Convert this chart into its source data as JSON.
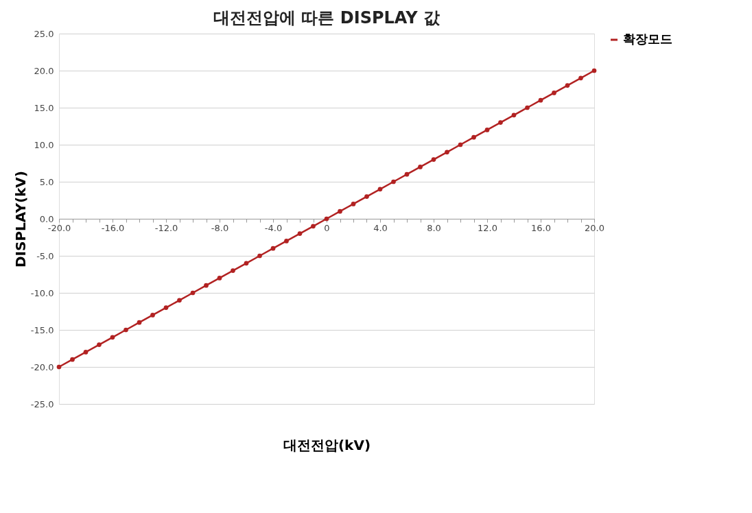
{
  "chart_data": {
    "type": "line",
    "title": "대전전압에 따른 DISPLAY 값",
    "xlabel": "대전전압(kV)",
    "ylabel": "DISPLAY(kV)",
    "x": [
      -20,
      -19,
      -18,
      -17,
      -16,
      -15,
      -14,
      -13,
      -12,
      -11,
      -10,
      -9,
      -8,
      -7,
      -6,
      -5,
      -4,
      -3,
      -2,
      -1,
      0,
      1,
      2,
      3,
      4,
      5,
      6,
      7,
      8,
      9,
      10,
      11,
      12,
      13,
      14,
      15,
      16,
      17,
      18,
      19,
      20
    ],
    "series": [
      {
        "name": "확장모드",
        "color": "#b22222",
        "values": [
          -20,
          -19,
          -18,
          -17,
          -16,
          -15,
          -14,
          -13,
          -12,
          -11,
          -10,
          -9,
          -8,
          -7,
          -6,
          -5,
          -4,
          -3,
          -2,
          -1,
          0,
          1,
          2,
          3,
          4,
          5,
          6,
          7,
          8,
          9,
          10,
          11,
          12,
          13,
          14,
          15,
          16,
          17,
          18,
          19,
          20
        ]
      }
    ],
    "xlim": [
      -20,
      20
    ],
    "xticks": [
      {
        "value": -20,
        "label": "-20.0"
      },
      {
        "value": -19,
        "label": null
      },
      {
        "value": -18,
        "label": null
      },
      {
        "value": -17,
        "label": null
      },
      {
        "value": -16,
        "label": "-16.0"
      },
      {
        "value": -15,
        "label": null
      },
      {
        "value": -14,
        "label": null
      },
      {
        "value": -13,
        "label": null
      },
      {
        "value": -12,
        "label": "-12.0"
      },
      {
        "value": -11,
        "label": null
      },
      {
        "value": -10,
        "label": null
      },
      {
        "value": -9,
        "label": null
      },
      {
        "value": -8,
        "label": "-8.0"
      },
      {
        "value": -7,
        "label": null
      },
      {
        "value": -6,
        "label": null
      },
      {
        "value": -5,
        "label": null
      },
      {
        "value": -4,
        "label": "-4.0"
      },
      {
        "value": -3,
        "label": null
      },
      {
        "value": -2,
        "label": null
      },
      {
        "value": -1,
        "label": null
      },
      0,
      {
        "value": 1,
        "label": null
      },
      {
        "value": 2,
        "label": null
      },
      {
        "value": 3,
        "label": null
      },
      {
        "value": 4,
        "label": "4.0"
      },
      {
        "value": 5,
        "label": null
      },
      {
        "value": 6,
        "label": null
      },
      {
        "value": 7,
        "label": null
      },
      {
        "value": 8,
        "label": "8.0"
      },
      {
        "value": 9,
        "label": null
      },
      {
        "value": 10,
        "label": null
      },
      {
        "value": 11,
        "label": null
      },
      {
        "value": 12,
        "label": "12.0"
      },
      {
        "value": 13,
        "label": null
      },
      {
        "value": 14,
        "label": null
      },
      {
        "value": 15,
        "label": null
      },
      {
        "value": 16,
        "label": "16.0"
      },
      {
        "value": 17,
        "label": null
      },
      {
        "value": 18,
        "label": null
      },
      {
        "value": 19,
        "label": null
      },
      {
        "value": 20,
        "label": "20.0"
      }
    ],
    "ylim": [
      -25,
      25
    ],
    "yticks": [
      {
        "value": -25,
        "label": "-25.0"
      },
      {
        "value": -20,
        "label": "-20.0"
      },
      {
        "value": -15,
        "label": "-15.0"
      },
      {
        "value": -10,
        "label": "-10.0"
      },
      {
        "value": -5,
        "label": "-5.0"
      },
      {
        "value": 0,
        "label": "0.0"
      },
      {
        "value": 5,
        "label": "5.0"
      },
      {
        "value": 10,
        "label": "10.0"
      },
      {
        "value": 15,
        "label": "15.0"
      },
      {
        "value": 20,
        "label": "20.0"
      },
      {
        "value": 25,
        "label": "25.0"
      }
    ],
    "grid": "y",
    "legend": "right",
    "marker": "circle",
    "line_style": "solid"
  }
}
